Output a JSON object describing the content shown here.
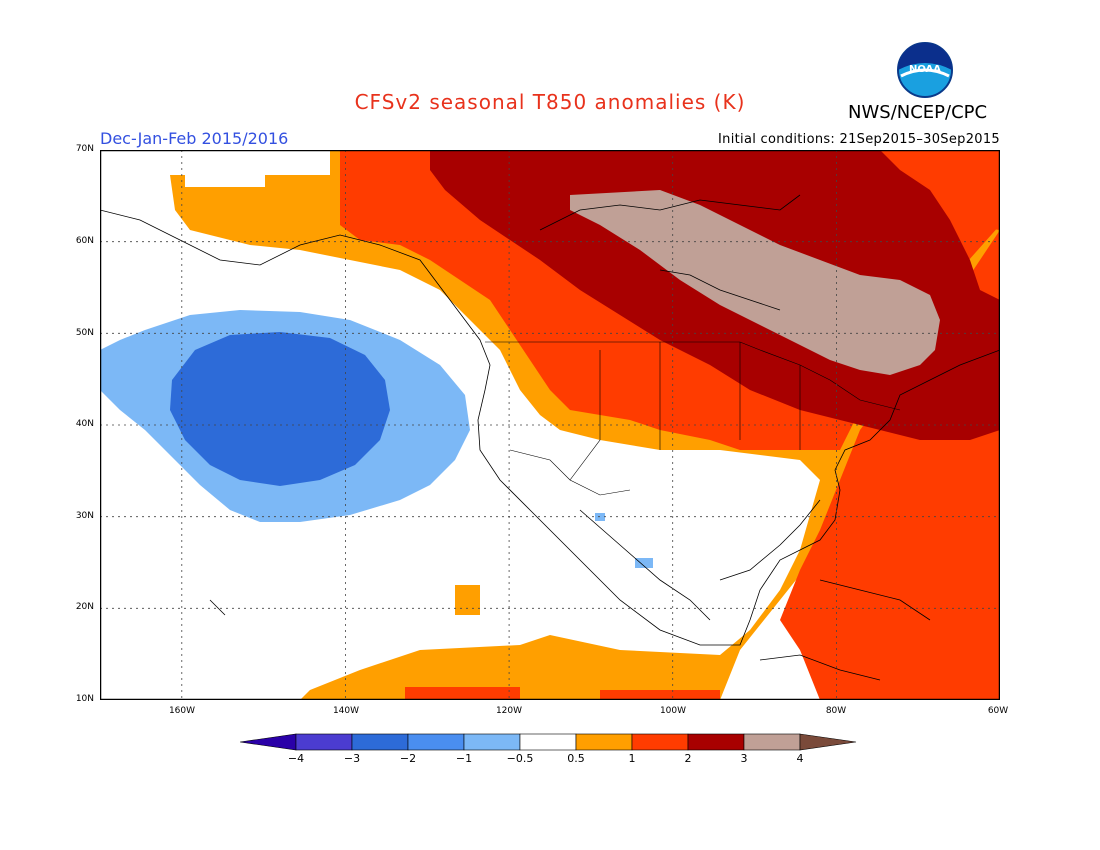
{
  "title": "CFSv2 seasonal T850 anomalies (K)",
  "agency": "NWS/NCEP/CPC",
  "logo_text": "NOAA",
  "period": "Dec-Jan-Feb 2015/2016",
  "initial_conditions": "Initial conditions: 21Sep2015–30Sep2015",
  "lat_labels": [
    "70N",
    "60N",
    "50N",
    "40N",
    "30N",
    "20N",
    "10N"
  ],
  "lon_labels": [
    "160W",
    "140W",
    "120W",
    "100W",
    "80W",
    "60W"
  ],
  "colorbar": {
    "labels": [
      "−4",
      "−3",
      "−2",
      "−1",
      "−0.5",
      "0.5",
      "1",
      "2",
      "3",
      "4"
    ],
    "colors": [
      "#2a00a8",
      "#4b3cd0",
      "#2d6bd8",
      "#4a8ef0",
      "#7cb8f6",
      "#ffffff",
      "#ff9f00",
      "#ff3c00",
      "#a80000",
      "#c0a096",
      "#7a4a3a"
    ]
  },
  "map": {
    "lon_range": [
      -170,
      -60
    ],
    "lat_range": [
      10,
      70
    ],
    "grid_lines": true
  }
}
